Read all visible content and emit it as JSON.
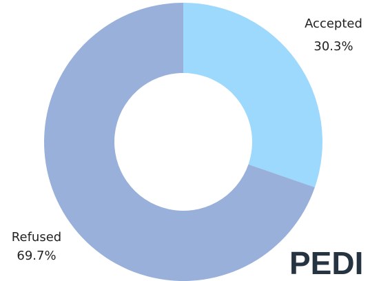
{
  "chart_data": {
    "type": "donut",
    "categories": [
      "Accepted",
      "Refused"
    ],
    "values": [
      30.3,
      69.7
    ],
    "value_labels": [
      "30.3%",
      "69.7%"
    ],
    "colors": [
      "#9dd8fd",
      "#98b0da"
    ],
    "watermark": "PEDI"
  }
}
